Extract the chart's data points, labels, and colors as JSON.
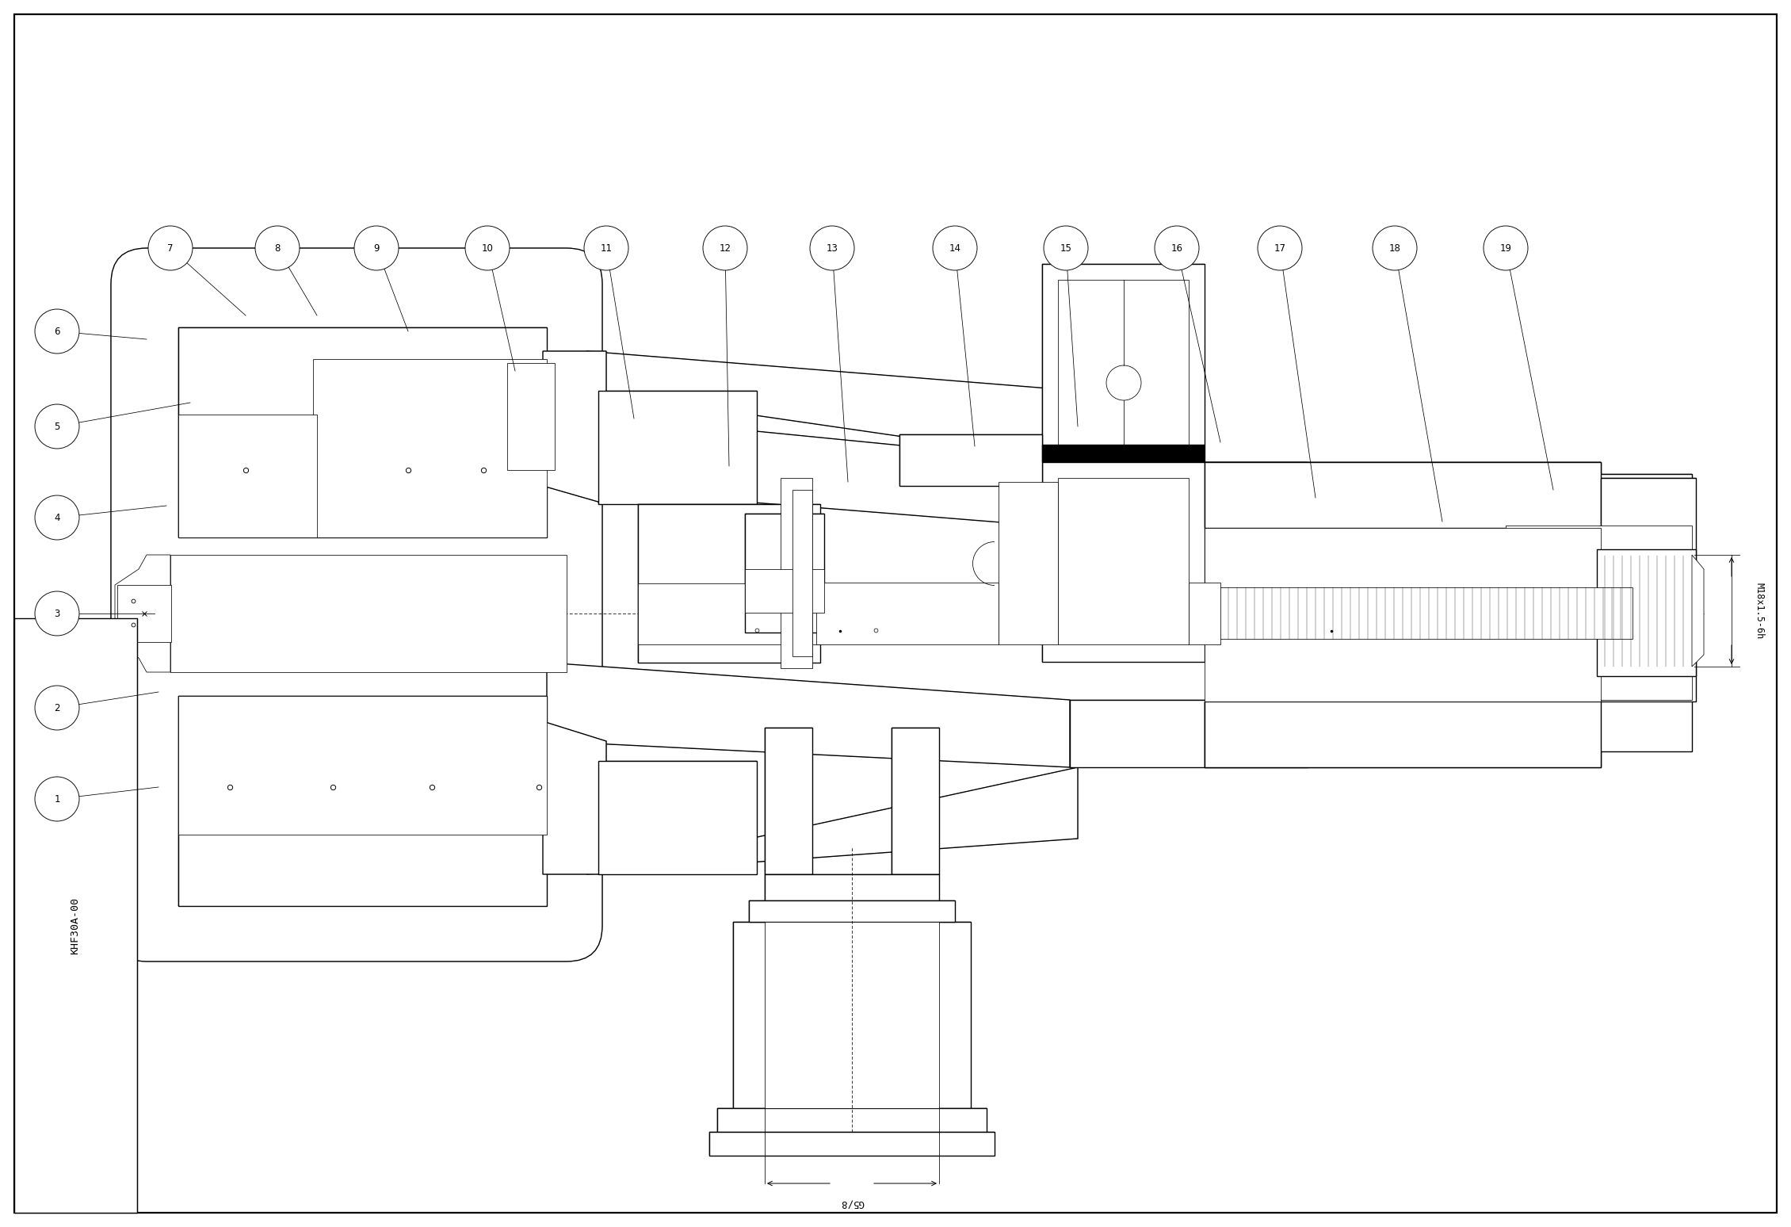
{
  "bg": "#ffffff",
  "lc": "#000000",
  "title": "KHF30A-00",
  "dim_g58": "G5/8",
  "dim_m18": "M18x1.5-6h",
  "lw": 1.0,
  "lt": 0.55,
  "cr": 0.28,
  "cfs": 8.5,
  "callouts": [
    [
      1,
      0.72,
      5.4,
      2.0,
      5.55
    ],
    [
      2,
      0.72,
      6.55,
      2.0,
      6.75
    ],
    [
      3,
      0.72,
      7.74,
      1.95,
      7.74
    ],
    [
      4,
      0.72,
      8.95,
      2.1,
      9.1
    ],
    [
      5,
      0.72,
      10.1,
      2.4,
      10.4
    ],
    [
      6,
      0.72,
      11.3,
      1.85,
      11.2
    ],
    [
      7,
      2.15,
      12.35,
      3.1,
      11.5
    ],
    [
      8,
      3.5,
      12.35,
      4.0,
      11.5
    ],
    [
      9,
      4.75,
      12.35,
      5.15,
      11.3
    ],
    [
      10,
      6.15,
      12.35,
      6.5,
      10.8
    ],
    [
      11,
      7.65,
      12.35,
      8.0,
      10.2
    ],
    [
      12,
      9.15,
      12.35,
      9.2,
      9.6
    ],
    [
      13,
      10.5,
      12.35,
      10.7,
      9.4
    ],
    [
      14,
      12.05,
      12.35,
      12.3,
      9.85
    ],
    [
      15,
      13.45,
      12.35,
      13.6,
      10.1
    ],
    [
      16,
      14.85,
      12.35,
      15.4,
      9.9
    ],
    [
      17,
      16.15,
      12.35,
      16.6,
      9.2
    ],
    [
      18,
      17.6,
      12.35,
      18.2,
      8.9
    ],
    [
      19,
      19.0,
      12.35,
      19.6,
      9.3
    ]
  ]
}
